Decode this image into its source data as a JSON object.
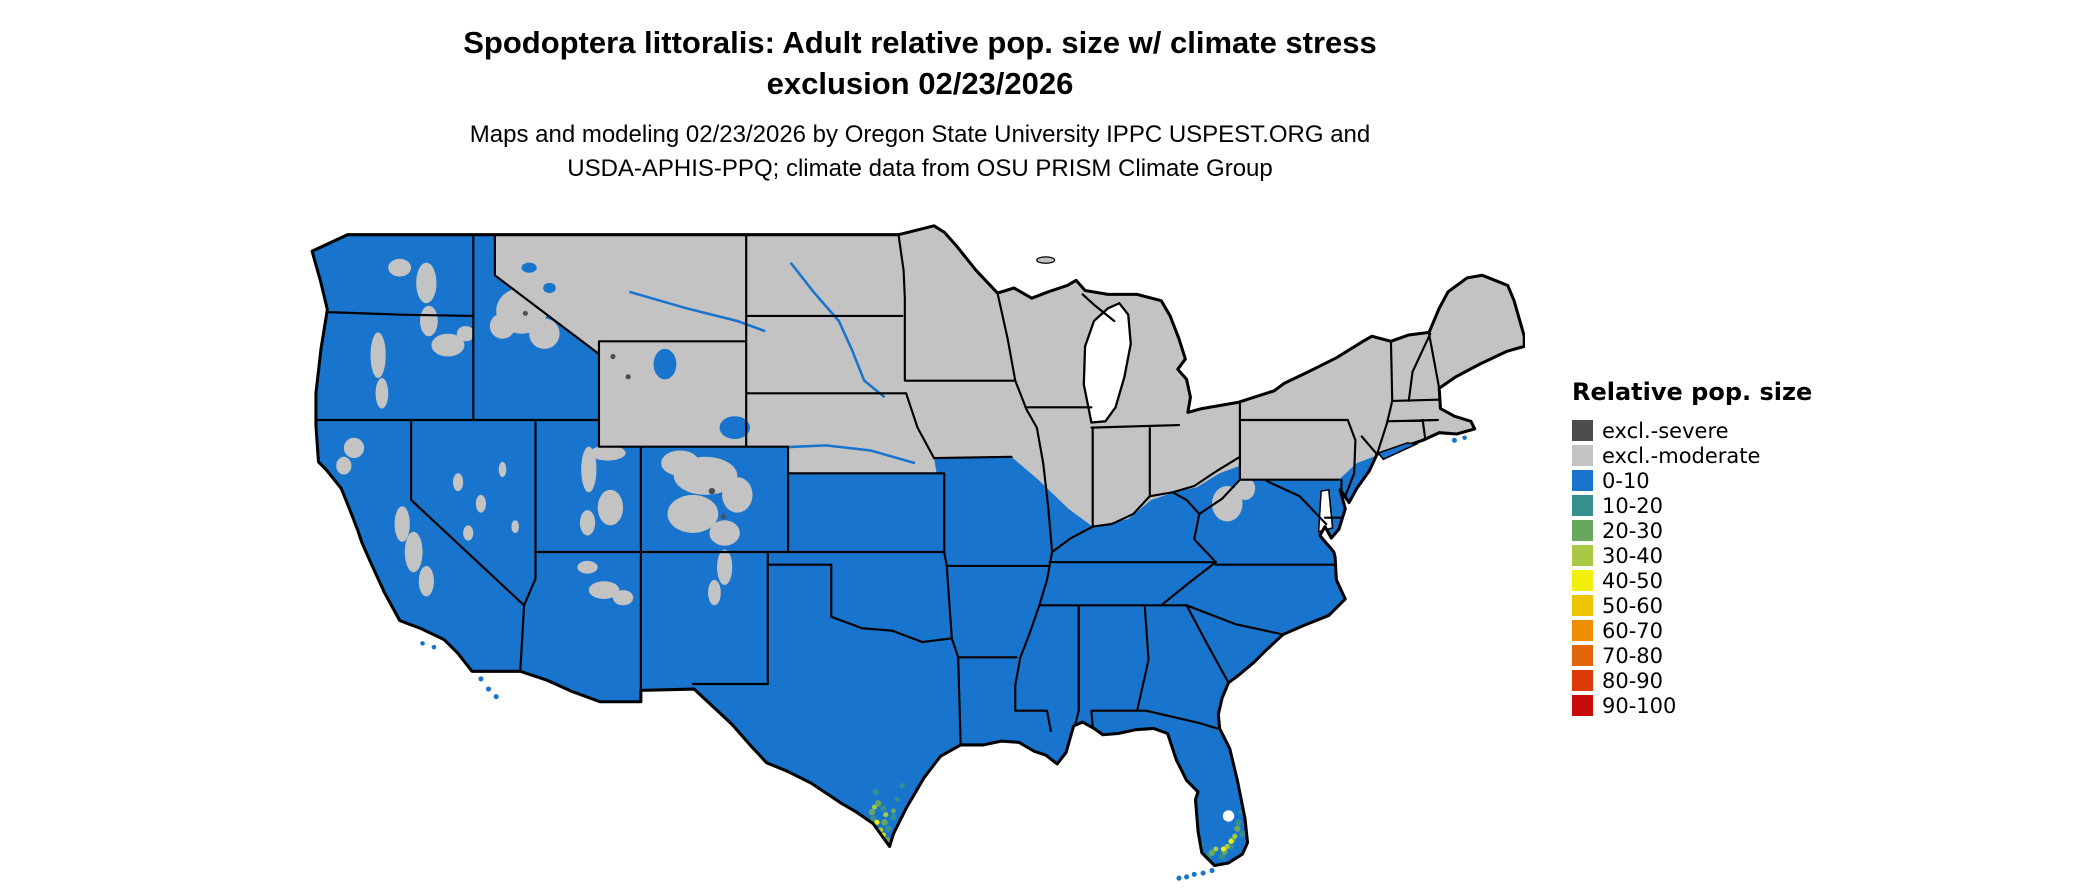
{
  "figure": {
    "title_line1": "Spodoptera littoralis: Adult relative pop. size w/ climate stress",
    "title_line2": "exclusion 02/23/2026",
    "subtitle_line1": "Maps and modeling 02/23/2026 by Oregon State University IPPC USPEST.ORG and",
    "subtitle_line2": "USDA-APHIS-PPQ; climate data from OSU PRISM Climate Group"
  },
  "legend": {
    "title": "Relative pop. size",
    "items": [
      {
        "label": "excl.-severe",
        "color": "#4d4d4d"
      },
      {
        "label": "excl.-moderate",
        "color": "#c3c3c3"
      },
      {
        "label": "0-10",
        "color": "#1874cd"
      },
      {
        "label": "10-20",
        "color": "#368f8f"
      },
      {
        "label": "20-30",
        "color": "#67a85e"
      },
      {
        "label": "30-40",
        "color": "#a9c846"
      },
      {
        "label": "40-50",
        "color": "#f2ef0a"
      },
      {
        "label": "50-60",
        "color": "#eec400"
      },
      {
        "label": "60-70",
        "color": "#ef8f00"
      },
      {
        "label": "70-80",
        "color": "#e2660c"
      },
      {
        "label": "80-90",
        "color": "#dc3a0a"
      },
      {
        "label": "90-100",
        "color": "#c80c0c"
      }
    ]
  }
}
